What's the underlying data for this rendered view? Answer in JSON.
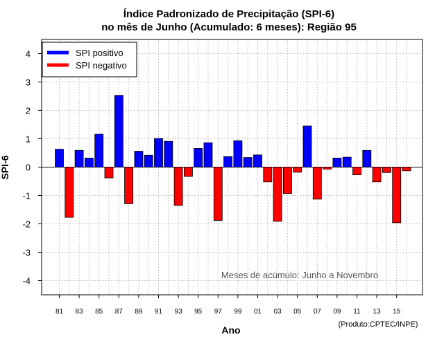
{
  "chart_data": {
    "type": "bar",
    "title": "Índice Padronizado de Precipitação (SPI-6)",
    "subtitle": "no mês de Junho (Acumulado: 6 meses): Região 95",
    "xlabel": "Ano",
    "ylabel": "SPI-6",
    "ylim": [
      -4.5,
      4.5
    ],
    "yticks": [
      "4",
      "3",
      "2",
      "1",
      "0",
      "-1",
      "-2",
      "-3",
      "-4"
    ],
    "ytick_values": [
      4,
      3,
      2,
      1,
      0,
      -1,
      -2,
      -3,
      -4
    ],
    "xtick_labels": [
      "81",
      "83",
      "85",
      "87",
      "89",
      "91",
      "93",
      "95",
      "97",
      "99",
      "01",
      "03",
      "05",
      "07",
      "09",
      "11",
      "13",
      "15"
    ],
    "categories": [
      "1981",
      "1982",
      "1983",
      "1984",
      "1985",
      "1986",
      "1987",
      "1988",
      "1989",
      "1990",
      "1991",
      "1992",
      "1993",
      "1994",
      "1995",
      "1996",
      "1997",
      "1998",
      "1999",
      "2000",
      "2001",
      "2002",
      "2003",
      "2004",
      "2005",
      "2006",
      "2007",
      "2008",
      "2009",
      "2010",
      "2011",
      "2012",
      "2013",
      "2014",
      "2015",
      "2016"
    ],
    "values": [
      0.63,
      -1.77,
      0.59,
      0.32,
      1.16,
      -0.38,
      2.53,
      -1.29,
      0.56,
      0.42,
      1.01,
      0.91,
      -1.35,
      -0.33,
      0.66,
      0.86,
      -1.88,
      0.37,
      0.93,
      0.34,
      0.43,
      -0.52,
      -1.91,
      -0.93,
      -0.18,
      1.45,
      -1.13,
      -0.07,
      0.32,
      0.35,
      -0.27,
      0.59,
      -0.52,
      -0.19,
      -1.96,
      -0.13
    ],
    "grid": true,
    "legend": {
      "position": "top-left",
      "positive_label": "SPI positivo",
      "negative_label": "SPI negativo"
    },
    "annotation": "Meses de acúmulo: Junho a Novembro",
    "credit": "(Produto:CPTEC/INPE)",
    "colors": {
      "positive": "#0000ff",
      "negative": "#ff0000"
    }
  }
}
